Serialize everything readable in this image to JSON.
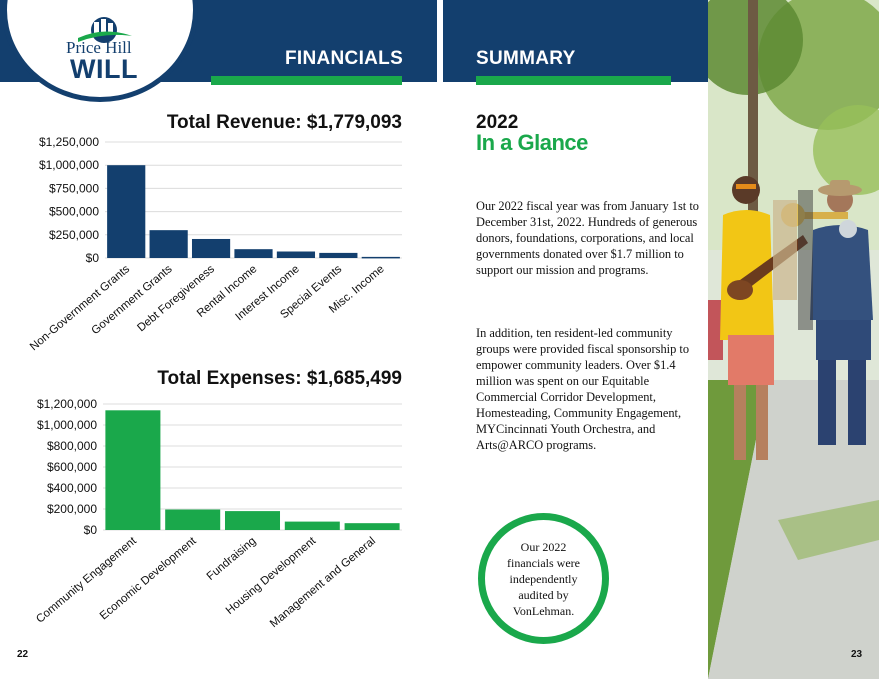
{
  "brand": {
    "logo_line1": "Price Hill",
    "logo_line2": "WILL",
    "navy": "#133f6e",
    "green": "#1aa84b"
  },
  "left_page": {
    "section_title": "FINANCIALS",
    "page_number": "22"
  },
  "right_page": {
    "section_title": "SUMMARY",
    "year": "2022",
    "heading": "In a Glance",
    "paragraph1": "Our 2022 fiscal year was from January 1st to December 31st, 2022. Hundreds of generous donors, foundations, corporations, and local governments donated over $1.7 million to support our mission and programs.",
    "paragraph2": "In addition, ten resident-led community groups were provided fiscal sponsorship to empower community leaders. Over $1.4 million was spent on our Equitable Commercial Corridor Development, Homesteading, Community Engagement, MYCincinnati Youth Orchestra, and Arts@ARCO programs.",
    "audit_note": "Our 2022 financials were independently audited by VonLehman.",
    "page_number": "23"
  },
  "chart_data": [
    {
      "type": "bar",
      "title": "Total Revenue: $1,779,093",
      "categories": [
        "Non-Government Grants",
        "Government Grants",
        "Debt Foregiveness",
        "Rental Income",
        "Interest Income",
        "Special Events",
        "Misc. Income"
      ],
      "values": [
        1000000,
        300000,
        205000,
        95000,
        70000,
        55000,
        12000
      ],
      "ylim": [
        0,
        1250000
      ],
      "yticks": [
        0,
        250000,
        500000,
        750000,
        1000000,
        1250000
      ],
      "ytick_labels": [
        "$0",
        "$250,000",
        "$500,000",
        "$750,000",
        "$1,000,000",
        "$1,250,000"
      ],
      "color": "#133f6e",
      "grid": true
    },
    {
      "type": "bar",
      "title": "Total Expenses: $1,685,499",
      "categories": [
        "Community Engagement",
        "Economic Development",
        "Fundraising",
        "Housing Development",
        "Management and General"
      ],
      "values": [
        1140000,
        195000,
        180000,
        80000,
        65000
      ],
      "ylim": [
        0,
        1200000
      ],
      "yticks": [
        0,
        200000,
        400000,
        600000,
        800000,
        1000000,
        1200000
      ],
      "ytick_labels": [
        "$0",
        "$200,000",
        "$400,000",
        "$600,000",
        "$800,000",
        "$1,000,000",
        "$1,200,000"
      ],
      "color": "#1aa84b",
      "grid": true
    }
  ]
}
